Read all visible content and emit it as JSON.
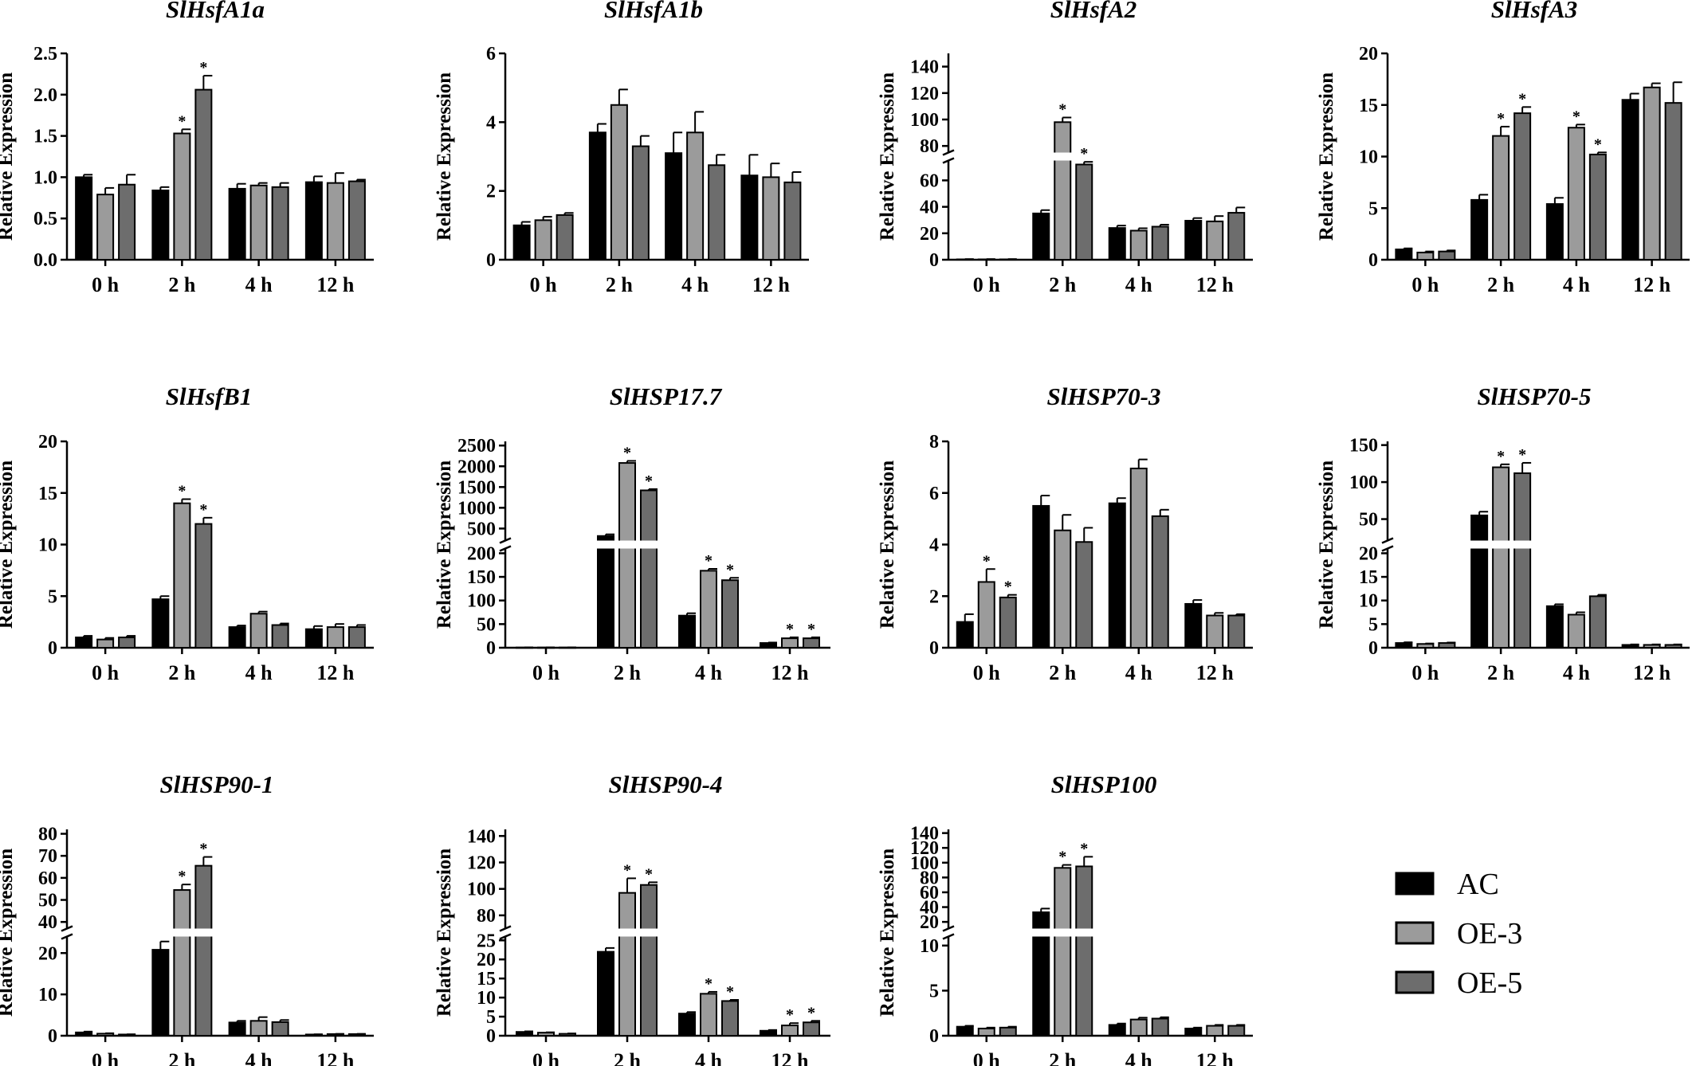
{
  "colors": {
    "AC": "#000000",
    "OE-3": "#9b9b9b",
    "OE-5": "#6d6d6d",
    "axis": "#000000"
  },
  "legend": [
    {
      "name": "AC",
      "color": "#000000"
    },
    {
      "name": "OE-3",
      "color": "#9b9b9b"
    },
    {
      "name": "OE-5",
      "color": "#6d6d6d"
    }
  ],
  "chart_data": [
    {
      "type": "bar",
      "title": "SlHsfA1a",
      "ylabel": "Relative Expression",
      "categories": [
        "0 h",
        "2 h",
        "4 h",
        "12 h"
      ],
      "ylim": [
        0,
        2.5
      ],
      "ticks": [
        0,
        0.5,
        1,
        1.5,
        2,
        2.5
      ],
      "tick_labels": [
        "0.0",
        "0.5",
        "1.0",
        "1.5",
        "2.0",
        "2.5"
      ],
      "break": null,
      "series": [
        {
          "name": "AC",
          "values": [
            1.0,
            0.84,
            0.86,
            0.94
          ],
          "err": [
            0.03,
            0.04,
            0.06,
            0.07
          ],
          "sig": [
            false,
            false,
            false,
            false
          ]
        },
        {
          "name": "OE-3",
          "values": [
            0.79,
            1.53,
            0.9,
            0.93
          ],
          "err": [
            0.08,
            0.05,
            0.03,
            0.12
          ],
          "sig": [
            false,
            true,
            false,
            false
          ]
        },
        {
          "name": "OE-5",
          "values": [
            0.91,
            2.06,
            0.88,
            0.95
          ],
          "err": [
            0.12,
            0.17,
            0.05,
            0.02
          ],
          "sig": [
            false,
            true,
            false,
            false
          ]
        }
      ]
    },
    {
      "type": "bar",
      "title": "SlHsfA1b",
      "ylabel": "Relative Expression",
      "categories": [
        "0 h",
        "2 h",
        "4 h",
        "12 h"
      ],
      "ylim": [
        0,
        6
      ],
      "ticks": [
        0,
        2,
        4,
        6
      ],
      "tick_labels": [
        "0",
        "2",
        "4",
        "6"
      ],
      "break": null,
      "series": [
        {
          "name": "AC",
          "values": [
            1.0,
            3.7,
            3.1,
            2.45
          ],
          "err": [
            0.1,
            0.25,
            0.6,
            0.6
          ],
          "sig": [
            false,
            false,
            false,
            false
          ]
        },
        {
          "name": "OE-3",
          "values": [
            1.15,
            4.5,
            3.7,
            2.4
          ],
          "err": [
            0.1,
            0.45,
            0.6,
            0.4
          ],
          "sig": [
            false,
            false,
            false,
            false
          ]
        },
        {
          "name": "OE-5",
          "values": [
            1.3,
            3.3,
            2.75,
            2.25
          ],
          "err": [
            0.06,
            0.3,
            0.3,
            0.3
          ],
          "sig": [
            false,
            false,
            false,
            false
          ]
        }
      ]
    },
    {
      "type": "bar",
      "title": "SlHsfA2",
      "ylabel": "Relative Expression",
      "categories": [
        "0 h",
        "2 h",
        "4 h",
        "12 h"
      ],
      "ylim": [
        0,
        140
      ],
      "ticks": [
        0,
        20,
        40,
        60,
        80,
        100,
        120,
        140
      ],
      "tick_labels": [
        "0",
        "20",
        "40",
        "60",
        "80",
        "100",
        "120",
        "140"
      ],
      "break": {
        "low": [
          0,
          75
        ],
        "high": [
          75,
          150
        ]
      },
      "series": [
        {
          "name": "AC",
          "values": [
            0.3,
            35,
            24,
            29.5
          ],
          "err": [
            0.2,
            2.5,
            1.8,
            2.0
          ],
          "sig": [
            false,
            false,
            false,
            false
          ]
        },
        {
          "name": "OE-3",
          "values": [
            0.3,
            98,
            22,
            29
          ],
          "err": [
            0.2,
            3.5,
            1.8,
            4.0
          ],
          "sig": [
            false,
            true,
            false,
            false
          ]
        },
        {
          "name": "OE-5",
          "values": [
            0.3,
            72,
            25,
            35.5
          ],
          "err": [
            0.2,
            2.0,
            1.5,
            4.0
          ],
          "sig": [
            false,
            true,
            false,
            false
          ]
        }
      ]
    },
    {
      "type": "bar",
      "title": "SlHsfA3",
      "ylabel": "Relative Expression",
      "categories": [
        "0 h",
        "2 h",
        "4 h",
        "12 h"
      ],
      "ylim": [
        0,
        20
      ],
      "ticks": [
        0,
        5,
        10,
        15,
        20
      ],
      "tick_labels": [
        "0",
        "5",
        "10",
        "15",
        "20"
      ],
      "break": null,
      "series": [
        {
          "name": "AC",
          "values": [
            1.0,
            5.8,
            5.4,
            15.5
          ],
          "err": [
            0.1,
            0.5,
            0.6,
            0.6
          ],
          "sig": [
            false,
            false,
            false,
            false
          ]
        },
        {
          "name": "OE-3",
          "values": [
            0.7,
            12.0,
            12.8,
            16.7
          ],
          "err": [
            0.1,
            0.9,
            0.3,
            0.4
          ],
          "sig": [
            false,
            true,
            true,
            false
          ]
        },
        {
          "name": "OE-5",
          "values": [
            0.8,
            14.2,
            10.2,
            15.2
          ],
          "err": [
            0.1,
            0.6,
            0.2,
            2.0
          ],
          "sig": [
            false,
            true,
            true,
            false
          ]
        }
      ]
    },
    {
      "type": "bar",
      "title": "SlHsfB1",
      "ylabel": "Relative Expression",
      "categories": [
        "0 h",
        "2 h",
        "4 h",
        "12 h"
      ],
      "ylim": [
        0,
        20
      ],
      "ticks": [
        0,
        5,
        10,
        15,
        20
      ],
      "tick_labels": [
        "0",
        "5",
        "10",
        "15",
        "20"
      ],
      "break": null,
      "series": [
        {
          "name": "AC",
          "values": [
            1.0,
            4.7,
            2.0,
            1.8
          ],
          "err": [
            0.15,
            0.3,
            0.15,
            0.3
          ],
          "sig": [
            false,
            false,
            false,
            false
          ]
        },
        {
          "name": "OE-3",
          "values": [
            0.8,
            14.0,
            3.3,
            2.0
          ],
          "err": [
            0.15,
            0.4,
            0.2,
            0.3
          ],
          "sig": [
            false,
            true,
            false,
            false
          ]
        },
        {
          "name": "OE-5",
          "values": [
            1.0,
            12.0,
            2.2,
            2.0
          ],
          "err": [
            0.15,
            0.6,
            0.15,
            0.2
          ],
          "sig": [
            false,
            true,
            false,
            false
          ]
        }
      ]
    },
    {
      "type": "bar",
      "title": "SlHSP17.7",
      "ylabel": "Relative Expression",
      "categories": [
        "0 h",
        "2 h",
        "4 h",
        "12 h"
      ],
      "ylim": [
        0,
        2500
      ],
      "ticks": [
        0,
        50,
        100,
        150,
        200,
        500,
        1000,
        1500,
        2000,
        2500
      ],
      "tick_labels": [
        "0",
        "50",
        "100",
        "150",
        "200",
        "500",
        "1000",
        "1500",
        "2000",
        "2500"
      ],
      "break": {
        "low": [
          0,
          210
        ],
        "high": [
          210,
          2600
        ]
      },
      "series": [
        {
          "name": "AC",
          "values": [
            0.5,
            320,
            68,
            10
          ],
          "err": [
            0.3,
            40,
            5,
            1
          ],
          "sig": [
            false,
            false,
            false,
            false
          ]
        },
        {
          "name": "OE-3",
          "values": [
            0.5,
            2080,
            163,
            20
          ],
          "err": [
            0.3,
            50,
            4,
            2
          ],
          "sig": [
            false,
            true,
            true,
            true
          ]
        },
        {
          "name": "OE-5",
          "values": [
            0.5,
            1420,
            143,
            20
          ],
          "err": [
            0.3,
            30,
            5,
            2
          ],
          "sig": [
            false,
            true,
            true,
            true
          ]
        }
      ]
    },
    {
      "type": "bar",
      "title": "SlHSP70-3",
      "ylabel": "Relative Expression",
      "categories": [
        "0 h",
        "2 h",
        "4 h",
        "12 h"
      ],
      "ylim": [
        0,
        8
      ],
      "ticks": [
        0,
        2,
        4,
        6,
        8
      ],
      "tick_labels": [
        "0",
        "2",
        "4",
        "6",
        "8"
      ],
      "break": null,
      "series": [
        {
          "name": "AC",
          "values": [
            1.0,
            5.5,
            5.6,
            1.7
          ],
          "err": [
            0.3,
            0.4,
            0.2,
            0.15
          ],
          "sig": [
            false,
            false,
            false,
            false
          ]
        },
        {
          "name": "OE-3",
          "values": [
            2.55,
            4.55,
            6.95,
            1.25
          ],
          "err": [
            0.5,
            0.6,
            0.35,
            0.1
          ],
          "sig": [
            true,
            false,
            false,
            false
          ]
        },
        {
          "name": "OE-5",
          "values": [
            1.95,
            4.1,
            5.1,
            1.25
          ],
          "err": [
            0.1,
            0.55,
            0.25,
            0.05
          ],
          "sig": [
            true,
            false,
            false,
            false
          ]
        }
      ]
    },
    {
      "type": "bar",
      "title": "SlHSP70-5",
      "ylabel": "Relative Expression",
      "categories": [
        "0 h",
        "2 h",
        "4 h",
        "12 h"
      ],
      "ylim": [
        0,
        150
      ],
      "ticks": [
        0,
        5,
        10,
        15,
        20,
        50,
        100,
        150
      ],
      "tick_labels": [
        "0",
        "5",
        "10",
        "15",
        "20",
        "50",
        "100",
        "150"
      ],
      "break": {
        "low": [
          0,
          21
        ],
        "high": [
          21,
          155
        ]
      },
      "series": [
        {
          "name": "AC",
          "values": [
            1.0,
            55,
            8.8,
            0.6
          ],
          "err": [
            0.15,
            5,
            0.4,
            0.1
          ],
          "sig": [
            false,
            false,
            false,
            false
          ]
        },
        {
          "name": "OE-3",
          "values": [
            0.8,
            120,
            7.0,
            0.6
          ],
          "err": [
            0.1,
            4,
            0.5,
            0.1
          ],
          "sig": [
            false,
            true,
            false,
            false
          ]
        },
        {
          "name": "OE-5",
          "values": [
            1.0,
            112,
            10.9,
            0.6
          ],
          "err": [
            0.1,
            14,
            0.3,
            0.1
          ],
          "sig": [
            false,
            true,
            false,
            false
          ]
        }
      ]
    },
    {
      "type": "bar",
      "title": "SlHSP90-1",
      "ylabel": "Relative Expression",
      "categories": [
        "0 h",
        "2 h",
        "4 h",
        "12 h"
      ],
      "ylim": [
        0,
        80
      ],
      "ticks": [
        0,
        10,
        20,
        40,
        50,
        60,
        70,
        80
      ],
      "tick_labels": [
        "0",
        "10",
        "20",
        "40",
        "50",
        "60",
        "70",
        "80"
      ],
      "break": {
        "low": [
          0,
          24
        ],
        "high": [
          37,
          82
        ]
      },
      "series": [
        {
          "name": "AC",
          "values": [
            0.8,
            20.8,
            3.2,
            0.3
          ],
          "err": [
            0.2,
            2.0,
            0.4,
            0.05
          ],
          "sig": [
            false,
            false,
            false,
            false
          ]
        },
        {
          "name": "OE-3",
          "values": [
            0.5,
            54.5,
            3.6,
            0.4
          ],
          "err": [
            0.1,
            2.5,
            0.9,
            0.05
          ],
          "sig": [
            false,
            true,
            false,
            false
          ]
        },
        {
          "name": "OE-5",
          "values": [
            0.3,
            65.5,
            3.3,
            0.4
          ],
          "err": [
            0.05,
            4.0,
            0.5,
            0.05
          ],
          "sig": [
            false,
            true,
            false,
            false
          ]
        }
      ]
    },
    {
      "type": "bar",
      "title": "SlHSP90-4",
      "ylabel": "Relative Expression",
      "categories": [
        "0 h",
        "2 h",
        "4 h",
        "12 h"
      ],
      "ylim": [
        0,
        140
      ],
      "ticks": [
        0,
        5,
        10,
        15,
        20,
        25,
        80,
        100,
        120,
        140
      ],
      "tick_labels": [
        "0",
        "5",
        "10",
        "15",
        "20",
        "25",
        "80",
        "100",
        "120",
        "140"
      ],
      "break": {
        "low": [
          0,
          26
        ],
        "high": [
          70,
          145
        ]
      },
      "series": [
        {
          "name": "AC",
          "values": [
            1.0,
            22.0,
            5.8,
            1.3
          ],
          "err": [
            0.15,
            1.0,
            0.4,
            0.2
          ],
          "sig": [
            false,
            false,
            false,
            false
          ]
        },
        {
          "name": "OE-3",
          "values": [
            0.8,
            97,
            11.0,
            2.7
          ],
          "err": [
            0.1,
            11,
            0.5,
            0.6
          ],
          "sig": [
            false,
            true,
            true,
            true
          ]
        },
        {
          "name": "OE-5",
          "values": [
            0.5,
            103,
            9.1,
            3.5
          ],
          "err": [
            0.1,
            2,
            0.3,
            0.4
          ],
          "sig": [
            false,
            true,
            true,
            true
          ]
        }
      ]
    },
    {
      "type": "bar",
      "title": "SlHSP100",
      "ylabel": "Relative Expression",
      "categories": [
        "0 h",
        "2 h",
        "4 h",
        "12 h"
      ],
      "ylim": [
        0,
        140
      ],
      "ticks": [
        0,
        5,
        10,
        20,
        40,
        60,
        80,
        100,
        120,
        140
      ],
      "tick_labels": [
        "0",
        "5",
        "10",
        "20",
        "40",
        "60",
        "80",
        "100",
        "120",
        "140"
      ],
      "break": {
        "low": [
          0,
          11
        ],
        "high": [
          11,
          145
        ]
      },
      "series": [
        {
          "name": "AC",
          "values": [
            1.0,
            33,
            1.2,
            0.8
          ],
          "err": [
            0.1,
            5,
            0.15,
            0.1
          ],
          "sig": [
            false,
            false,
            false,
            false
          ]
        },
        {
          "name": "OE-3",
          "values": [
            0.8,
            93,
            1.8,
            1.1
          ],
          "err": [
            0.1,
            4,
            0.2,
            0.1
          ],
          "sig": [
            false,
            true,
            false,
            false
          ]
        },
        {
          "name": "OE-5",
          "values": [
            0.9,
            95,
            1.9,
            1.1
          ],
          "err": [
            0.1,
            13,
            0.15,
            0.1
          ],
          "sig": [
            false,
            true,
            false,
            false
          ]
        }
      ]
    }
  ]
}
